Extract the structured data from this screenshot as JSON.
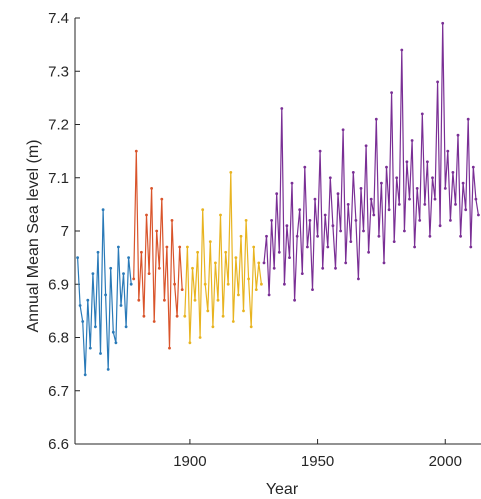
{
  "chart_data": {
    "type": "line",
    "title": "",
    "xlabel": "Year",
    "ylabel": "Annual Mean Sea level (m)",
    "xlim": [
      1855,
      2014
    ],
    "ylim": [
      6.6,
      7.4
    ],
    "xticks": [
      1900,
      1950,
      2000
    ],
    "yticks": [
      6.6,
      6.7,
      6.8,
      6.9,
      7.0,
      7.1,
      7.2,
      7.3,
      7.4
    ],
    "ytick_labels": [
      "6.6",
      "6.7",
      "6.8",
      "6.9",
      "7",
      "7.1",
      "7.2",
      "7.3",
      "7.4"
    ],
    "grid": false,
    "legend": "none",
    "series": [
      {
        "color": "#2a7ab8",
        "x": [
          1856,
          1857,
          1858,
          1859,
          1860,
          1861,
          1862,
          1863,
          1864,
          1865,
          1866,
          1867,
          1868,
          1869,
          1870,
          1871,
          1872,
          1873,
          1874,
          1875,
          1876,
          1877
        ],
        "y": [
          6.95,
          6.86,
          6.83,
          6.73,
          6.87,
          6.78,
          6.92,
          6.82,
          6.96,
          6.77,
          7.04,
          6.88,
          6.74,
          6.93,
          6.81,
          6.79,
          6.97,
          6.86,
          6.92,
          6.82,
          6.95,
          6.9
        ]
      },
      {
        "color": "#d9542b",
        "x": [
          1878,
          1879,
          1880,
          1881,
          1882,
          1883,
          1884,
          1885,
          1886,
          1887,
          1888,
          1889,
          1890,
          1891,
          1892,
          1893,
          1894,
          1895,
          1896,
          1897
        ],
        "y": [
          6.91,
          7.15,
          6.87,
          6.96,
          6.84,
          7.03,
          6.92,
          7.08,
          6.83,
          7.0,
          6.93,
          7.06,
          6.87,
          6.97,
          6.78,
          7.02,
          6.9,
          6.84,
          6.97,
          6.89
        ]
      },
      {
        "color": "#e8b420",
        "x": [
          1898,
          1899,
          1900,
          1901,
          1902,
          1903,
          1904,
          1905,
          1906,
          1907,
          1908,
          1909,
          1910,
          1911,
          1912,
          1913,
          1914,
          1915,
          1916,
          1917,
          1918,
          1919,
          1920,
          1921,
          1922,
          1923,
          1924,
          1925,
          1926,
          1927,
          1928
        ],
        "y": [
          6.84,
          6.97,
          6.79,
          6.93,
          6.87,
          6.96,
          6.8,
          7.04,
          6.9,
          6.85,
          6.98,
          6.82,
          6.94,
          6.87,
          7.03,
          6.84,
          6.96,
          6.9,
          7.11,
          6.83,
          6.95,
          6.88,
          6.99,
          6.85,
          7.02,
          6.91,
          6.82,
          6.97,
          6.89,
          6.94,
          6.9
        ]
      },
      {
        "color": "#7a2f95",
        "x": [
          1929,
          1930,
          1931,
          1932,
          1933,
          1934,
          1935,
          1936,
          1937,
          1938,
          1939,
          1940,
          1941,
          1942,
          1943,
          1944,
          1945,
          1946,
          1947,
          1948,
          1949,
          1950,
          1951,
          1952,
          1953,
          1954,
          1955,
          1956,
          1957,
          1958,
          1959,
          1960,
          1961,
          1962,
          1963,
          1964,
          1965,
          1966,
          1967,
          1968,
          1969,
          1970,
          1971,
          1972,
          1973,
          1974,
          1975,
          1976,
          1977,
          1978,
          1979,
          1980,
          1981,
          1982,
          1983,
          1984,
          1985,
          1986,
          1987,
          1988,
          1989,
          1990,
          1991,
          1992,
          1993,
          1994,
          1995,
          1996,
          1997,
          1998,
          1999,
          2000,
          2001,
          2002,
          2003,
          2004,
          2005,
          2006,
          2007,
          2008,
          2009,
          2010,
          2011,
          2012,
          2013
        ],
        "y": [
          6.94,
          6.99,
          6.88,
          7.02,
          6.93,
          7.07,
          6.96,
          7.23,
          6.9,
          7.01,
          6.95,
          7.09,
          6.87,
          6.99,
          7.04,
          6.92,
          7.12,
          6.97,
          7.02,
          6.89,
          7.06,
          6.99,
          7.15,
          6.93,
          7.03,
          6.97,
          7.1,
          7.01,
          6.93,
          7.07,
          7.0,
          7.19,
          6.94,
          7.05,
          6.98,
          7.11,
          7.02,
          6.91,
          7.08,
          7.0,
          7.16,
          6.96,
          7.06,
          7.03,
          7.21,
          6.99,
          7.09,
          6.94,
          7.12,
          7.04,
          7.26,
          6.98,
          7.1,
          7.05,
          7.34,
          7.0,
          7.13,
          7.06,
          7.17,
          6.97,
          7.08,
          7.02,
          7.22,
          7.05,
          7.13,
          6.99,
          7.1,
          7.06,
          7.28,
          7.01,
          7.39,
          7.08,
          7.15,
          7.02,
          7.11,
          7.05,
          7.18,
          6.99,
          7.09,
          7.04,
          7.21,
          6.97,
          7.12,
          7.06,
          7.03
        ]
      }
    ]
  }
}
